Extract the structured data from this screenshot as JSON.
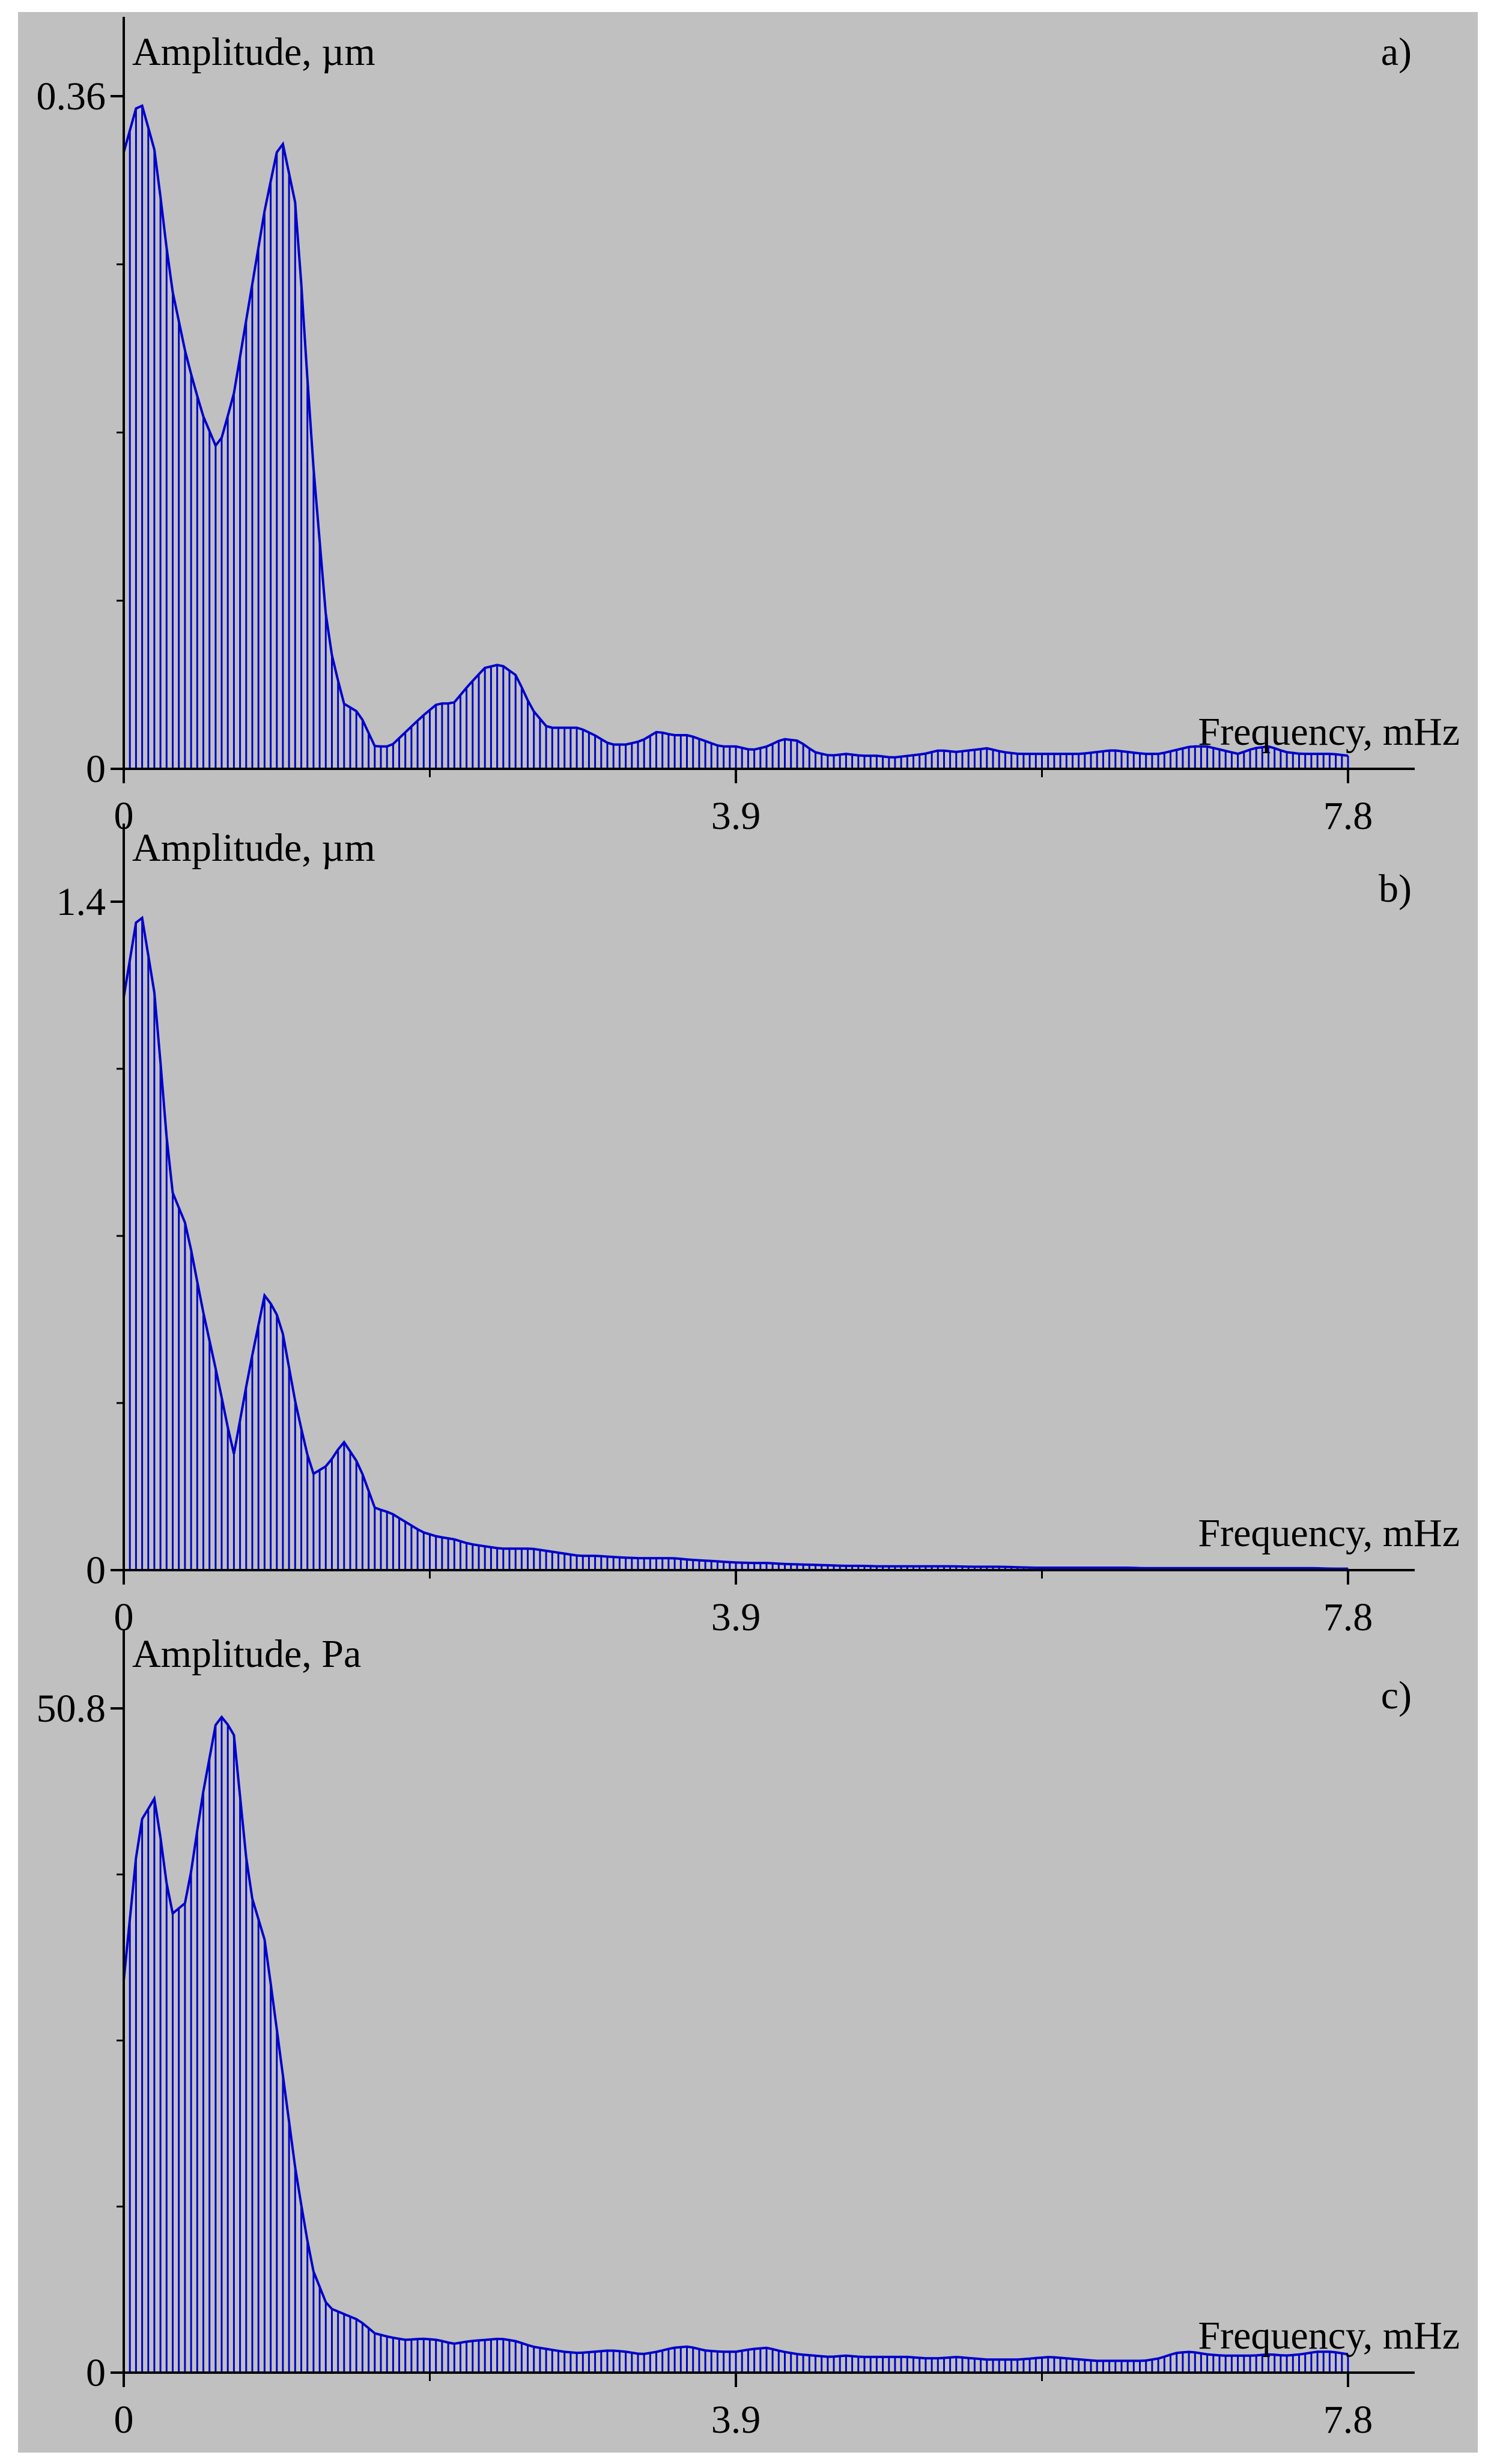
{
  "chart_data": [
    {
      "type": "area",
      "panel_label": "a)",
      "ylabel": "Amplitude, µm",
      "xlabel": "Frequency, mHz",
      "ylim": [
        0,
        0.36
      ],
      "xlim": [
        0,
        7.8
      ],
      "yticks": [
        "0",
        "0.36"
      ],
      "xticks": [
        "0",
        "3.9",
        "7.8"
      ],
      "background": "#c0c0c0",
      "series_color": "#0000cc",
      "x": [
        0.0,
        0.1,
        0.2,
        0.3,
        0.4,
        0.5,
        0.6,
        0.7,
        0.8,
        0.9,
        1.0,
        1.1,
        1.2,
        1.3,
        1.4,
        1.5,
        1.6,
        1.7,
        1.8,
        1.9,
        2.0,
        2.1,
        2.2,
        2.3,
        2.4,
        2.5,
        2.6,
        2.7,
        2.8,
        2.9,
        3.0,
        3.1,
        3.2,
        3.3,
        3.4,
        3.5,
        3.6,
        3.7,
        3.8,
        3.9,
        4.0,
        4.1,
        4.2,
        4.3,
        4.4,
        4.5,
        4.6,
        4.7,
        4.8,
        4.9,
        5.0,
        5.1,
        5.2,
        5.3,
        5.4,
        5.5,
        5.6,
        5.7,
        5.8,
        5.9,
        6.0,
        6.1,
        6.2,
        6.3,
        6.4,
        6.5,
        6.6,
        6.7,
        6.8,
        6.9,
        7.0,
        7.1,
        7.2,
        7.3,
        7.4,
        7.5,
        7.6,
        7.7,
        7.8
      ],
      "y": [
        0.33,
        0.36,
        0.33,
        0.26,
        0.22,
        0.19,
        0.17,
        0.2,
        0.25,
        0.3,
        0.34,
        0.3,
        0.17,
        0.07,
        0.035,
        0.03,
        0.012,
        0.012,
        0.02,
        0.028,
        0.035,
        0.035,
        0.045,
        0.054,
        0.056,
        0.05,
        0.032,
        0.022,
        0.022,
        0.022,
        0.018,
        0.013,
        0.013,
        0.015,
        0.02,
        0.018,
        0.018,
        0.015,
        0.012,
        0.012,
        0.01,
        0.012,
        0.016,
        0.015,
        0.009,
        0.007,
        0.008,
        0.007,
        0.007,
        0.006,
        0.007,
        0.008,
        0.01,
        0.009,
        0.01,
        0.011,
        0.009,
        0.008,
        0.008,
        0.008,
        0.008,
        0.008,
        0.009,
        0.01,
        0.009,
        0.008,
        0.008,
        0.01,
        0.012,
        0.012,
        0.01,
        0.008,
        0.011,
        0.012,
        0.009,
        0.008,
        0.008,
        0.008,
        0.007
      ]
    },
    {
      "type": "area",
      "panel_label": "b)",
      "ylabel": "Amplitude, µm",
      "xlabel": "Frequency, mHz",
      "ylim": [
        0,
        1.4
      ],
      "xlim": [
        0,
        7.8
      ],
      "yticks": [
        "0",
        "1.4"
      ],
      "xticks": [
        "0",
        "3.9",
        "7.8"
      ],
      "background": "#c0c0c0",
      "series_color": "#0000cc",
      "x": [
        0.0,
        0.1,
        0.2,
        0.3,
        0.4,
        0.5,
        0.6,
        0.7,
        0.8,
        0.9,
        1.0,
        1.1,
        1.2,
        1.3,
        1.4,
        1.5,
        1.6,
        1.7,
        1.8,
        1.9,
        2.0,
        2.1,
        2.2,
        2.3,
        2.4,
        2.5,
        2.6,
        2.7,
        2.8,
        2.9,
        3.0,
        3.1,
        3.2,
        3.3,
        3.4,
        3.5,
        3.6,
        3.7,
        3.8,
        3.9,
        4.0,
        4.1,
        4.2,
        4.3,
        4.4,
        4.5,
        4.6,
        4.7,
        4.8,
        4.9,
        5.0,
        5.1,
        5.2,
        5.3,
        5.4,
        5.5,
        5.6,
        5.7,
        5.8,
        5.9,
        6.0,
        6.1,
        6.2,
        6.3,
        6.4,
        6.5,
        6.6,
        6.7,
        6.8,
        6.9,
        7.0,
        7.1,
        7.2,
        7.3,
        7.4,
        7.5,
        7.6,
        7.7,
        7.8
      ],
      "y": [
        1.2,
        1.4,
        1.2,
        0.8,
        0.72,
        0.55,
        0.4,
        0.24,
        0.42,
        0.58,
        0.52,
        0.34,
        0.2,
        0.22,
        0.27,
        0.22,
        0.13,
        0.12,
        0.1,
        0.08,
        0.07,
        0.065,
        0.055,
        0.05,
        0.045,
        0.045,
        0.045,
        0.04,
        0.035,
        0.03,
        0.03,
        0.028,
        0.026,
        0.025,
        0.025,
        0.025,
        0.022,
        0.02,
        0.018,
        0.016,
        0.015,
        0.015,
        0.013,
        0.012,
        0.011,
        0.01,
        0.009,
        0.009,
        0.008,
        0.008,
        0.008,
        0.008,
        0.008,
        0.008,
        0.007,
        0.007,
        0.007,
        0.006,
        0.005,
        0.005,
        0.005,
        0.005,
        0.005,
        0.005,
        0.005,
        0.004,
        0.004,
        0.004,
        0.004,
        0.004,
        0.004,
        0.004,
        0.004,
        0.004,
        0.004,
        0.004,
        0.004,
        0.003,
        0.003
      ]
    },
    {
      "type": "area",
      "panel_label": "c)",
      "ylabel": "Amplitude, Pa",
      "xlabel": "Frequency, mHz",
      "ylim": [
        0,
        50.8
      ],
      "xlim": [
        0,
        7.8
      ],
      "yticks": [
        "0",
        "50.8"
      ],
      "xticks": [
        "0",
        "3.9",
        "7.8"
      ],
      "background": "#c0c0c0",
      "series_color": "#0000cc",
      "x": [
        0.0,
        0.1,
        0.2,
        0.3,
        0.4,
        0.5,
        0.6,
        0.7,
        0.8,
        0.9,
        1.0,
        1.1,
        1.2,
        1.3,
        1.4,
        1.5,
        1.6,
        1.7,
        1.8,
        1.9,
        2.0,
        2.1,
        2.2,
        2.3,
        2.4,
        2.5,
        2.6,
        2.7,
        2.8,
        2.9,
        3.0,
        3.1,
        3.2,
        3.3,
        3.4,
        3.5,
        3.6,
        3.7,
        3.8,
        3.9,
        4.0,
        4.1,
        4.2,
        4.3,
        4.4,
        4.5,
        4.6,
        4.7,
        4.8,
        4.9,
        5.0,
        5.1,
        5.2,
        5.3,
        5.4,
        5.5,
        5.6,
        5.7,
        5.8,
        5.9,
        6.0,
        6.1,
        6.2,
        6.3,
        6.4,
        6.5,
        6.6,
        6.7,
        6.8,
        6.9,
        7.0,
        7.1,
        7.2,
        7.3,
        7.4,
        7.5,
        7.6,
        7.7,
        7.8
      ],
      "y": [
        30,
        42,
        44,
        35,
        36,
        44,
        50.5,
        49,
        37,
        33,
        24,
        15,
        8,
        5,
        4.5,
        4,
        3,
        2.7,
        2.5,
        2.6,
        2.5,
        2.2,
        2.4,
        2.5,
        2.6,
        2.4,
        2.0,
        1.8,
        1.6,
        1.5,
        1.6,
        1.7,
        1.6,
        1.4,
        1.6,
        1.9,
        2.0,
        1.7,
        1.6,
        1.6,
        1.8,
        1.9,
        1.6,
        1.4,
        1.3,
        1.2,
        1.3,
        1.2,
        1.2,
        1.2,
        1.2,
        1.1,
        1.1,
        1.2,
        1.1,
        1.0,
        1.0,
        1.0,
        1.1,
        1.2,
        1.1,
        1.0,
        0.9,
        0.9,
        0.9,
        0.9,
        1.1,
        1.5,
        1.6,
        1.4,
        1.3,
        1.3,
        1.3,
        1.4,
        1.3,
        1.4,
        1.6,
        1.6,
        1.4
      ]
    }
  ]
}
